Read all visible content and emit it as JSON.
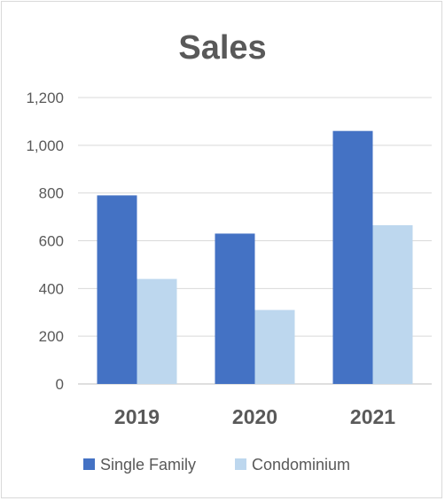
{
  "chart_data": {
    "type": "bar",
    "title": "Sales",
    "categories": [
      "2019",
      "2020",
      "2021"
    ],
    "series": [
      {
        "name": "Single Family",
        "values": [
          790,
          630,
          1060
        ],
        "color": "#4472c4"
      },
      {
        "name": "Condominium",
        "values": [
          440,
          310,
          665
        ],
        "color": "#bdd7ee"
      }
    ],
    "ylim": [
      0,
      1200
    ],
    "yticks": [
      0,
      200,
      400,
      600,
      800,
      1000,
      1200
    ],
    "ytick_labels": [
      "0",
      "200",
      "400",
      "600",
      "800",
      "1,000",
      "1,200"
    ],
    "grid": true,
    "legend_position": "bottom"
  }
}
